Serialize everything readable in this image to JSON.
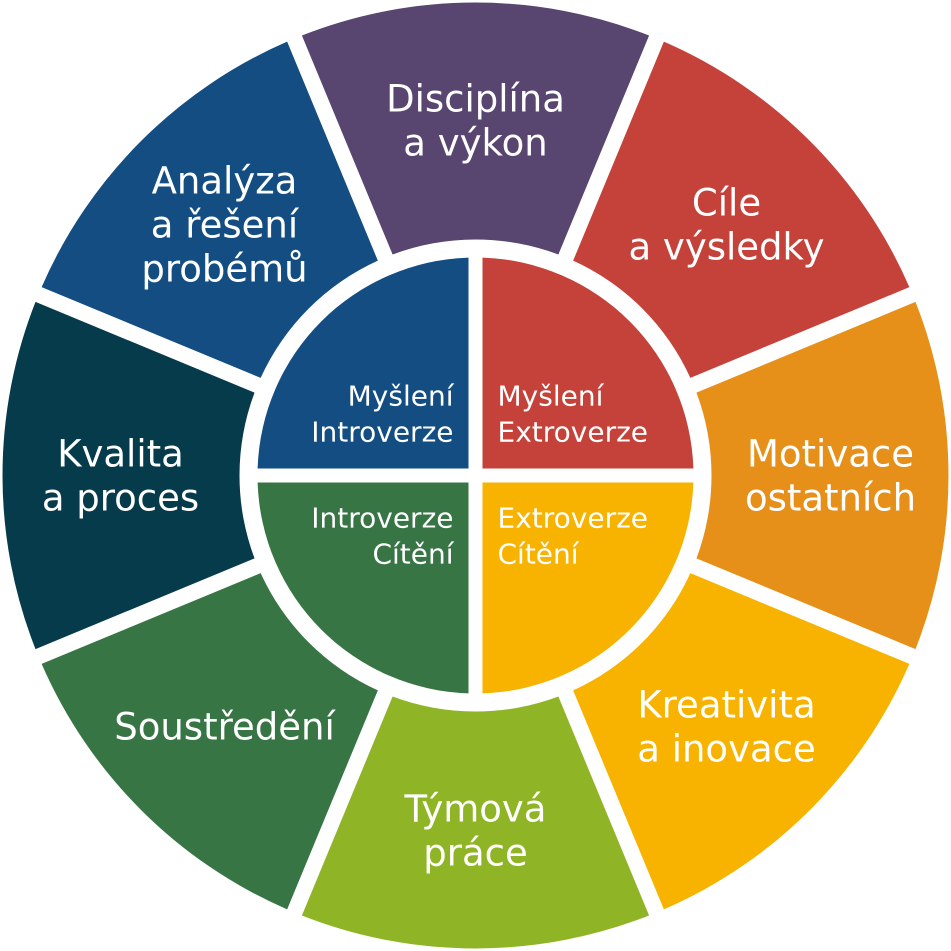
{
  "outer_segments": [
    {
      "id": "discipline",
      "lines": [
        "Disciplína",
        "a výkon"
      ],
      "color": "#584570"
    },
    {
      "id": "goals",
      "lines": [
        "Cíle",
        "a výsledky"
      ],
      "color": "#c4423a"
    },
    {
      "id": "motivation",
      "lines": [
        "Motivace",
        "ostatních"
      ],
      "color": "#e69019"
    },
    {
      "id": "creativity",
      "lines": [
        "Kreativita",
        "a inovace"
      ],
      "color": "#f8b300"
    },
    {
      "id": "teamwork",
      "lines": [
        "Týmová",
        "práce"
      ],
      "color": "#8fb526"
    },
    {
      "id": "focus",
      "lines": [
        "Soustředění"
      ],
      "color": "#387545"
    },
    {
      "id": "quality",
      "lines": [
        "Kvalita",
        "a proces"
      ],
      "color": "#063b4c"
    },
    {
      "id": "analysis",
      "lines": [
        "Analýza",
        "a řešení",
        "probémů"
      ],
      "color": "#134d82"
    }
  ],
  "inner_quadrants": [
    {
      "id": "thinking-extroversion",
      "lines": [
        "Myšlení",
        "Extroverze"
      ],
      "color": "#c4423a",
      "align": "start"
    },
    {
      "id": "extroversion-feeling",
      "lines": [
        "Extroverze",
        "Cítění"
      ],
      "color": "#f8b300",
      "align": "start"
    },
    {
      "id": "introversion-feeling",
      "lines": [
        "Introverze",
        "Cítění"
      ],
      "color": "#387545",
      "align": "end"
    },
    {
      "id": "thinking-introversion",
      "lines": [
        "Myšlení",
        "Introverze"
      ],
      "color": "#134d82",
      "align": "end"
    }
  ]
}
